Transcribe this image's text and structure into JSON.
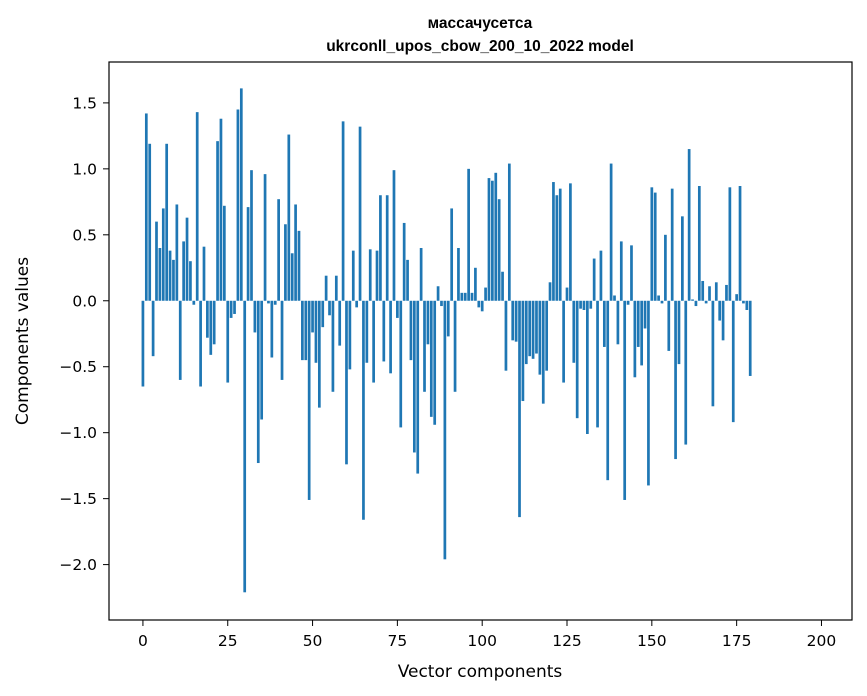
{
  "chart_data": {
    "type": "bar",
    "title": "массачусетса",
    "subtitle": "ukrconll_upos_cbow_200_10_2022 model",
    "xlabel": "Vector components",
    "ylabel": "Components values",
    "xlim": [
      -10,
      209
    ],
    "ylim": [
      -2.42,
      1.81
    ],
    "grid": false,
    "bar_color": "#1f77b4",
    "x_ticks": [
      0,
      25,
      50,
      75,
      100,
      125,
      150,
      175,
      200
    ],
    "x_tick_labels": [
      "0",
      "25",
      "50",
      "75",
      "100",
      "125",
      "150",
      "175",
      "200"
    ],
    "y_ticks": [
      1.5,
      1.0,
      0.5,
      0.0,
      -0.5,
      -1.0,
      -1.5,
      -2.0
    ],
    "y_tick_labels": [
      "1.5",
      "1.0",
      "0.5",
      "0.0",
      "−0.5",
      "−1.0",
      "−1.5",
      "−2.0"
    ],
    "values": [
      -0.65,
      1.42,
      1.19,
      -0.42,
      0.6,
      0.4,
      0.7,
      1.19,
      0.38,
      0.31,
      0.73,
      -0.6,
      0.45,
      0.63,
      0.3,
      -0.03,
      1.43,
      -0.65,
      0.41,
      -0.28,
      -0.41,
      -0.33,
      1.21,
      1.38,
      0.72,
      -0.62,
      -0.13,
      -0.1,
      1.45,
      1.61,
      -2.21,
      0.71,
      0.99,
      -0.24,
      -1.23,
      -0.9,
      0.96,
      -0.02,
      -0.43,
      -0.03,
      0.77,
      -0.6,
      0.58,
      1.26,
      0.36,
      0.73,
      0.53,
      -0.45,
      -0.45,
      -1.51,
      -0.24,
      -0.47,
      -0.81,
      -0.2,
      0.19,
      -0.11,
      -0.69,
      0.19,
      -0.34,
      1.36,
      -1.24,
      -0.52,
      0.38,
      -0.05,
      1.32,
      -1.66,
      -0.47,
      0.39,
      -0.62,
      0.38,
      0.8,
      -0.46,
      0.8,
      -0.55,
      0.99,
      -0.13,
      -0.96,
      0.59,
      0.31,
      -0.45,
      -1.15,
      -1.31,
      0.4,
      -0.69,
      -0.33,
      -0.88,
      -0.94,
      0.11,
      -0.04,
      -1.96,
      -0.27,
      0.7,
      -0.69,
      0.4,
      0.06,
      0.06,
      1.0,
      0.06,
      0.25,
      -0.05,
      -0.08,
      0.1,
      0.93,
      0.91,
      0.97,
      0.77,
      0.22,
      -0.53,
      1.04,
      -0.3,
      -0.31,
      -1.64,
      -0.76,
      -0.48,
      -0.42,
      -0.44,
      -0.4,
      -0.56,
      -0.78,
      -0.53,
      0.14,
      0.9,
      0.8,
      0.85,
      -0.62,
      0.1,
      0.89,
      -0.47,
      -0.89,
      -0.06,
      -0.07,
      -1.01,
      -0.06,
      0.32,
      -0.96,
      0.38,
      -0.35,
      -1.36,
      1.04,
      0.04,
      -0.33,
      0.45,
      -1.51,
      -0.03,
      0.42,
      -0.58,
      -0.35,
      -0.49,
      -0.21,
      -1.4,
      0.86,
      0.82,
      0.04,
      -0.02,
      0.5,
      -0.38,
      0.85,
      -1.2,
      -0.48,
      0.64,
      -1.09,
      1.15,
      0.01,
      -0.04,
      0.87,
      0.15,
      -0.02,
      0.11,
      -0.8,
      0.14,
      -0.15,
      -0.3,
      0.12,
      0.86,
      -0.92,
      0.05,
      0.87,
      -0.02,
      -0.07,
      -0.57
    ]
  }
}
